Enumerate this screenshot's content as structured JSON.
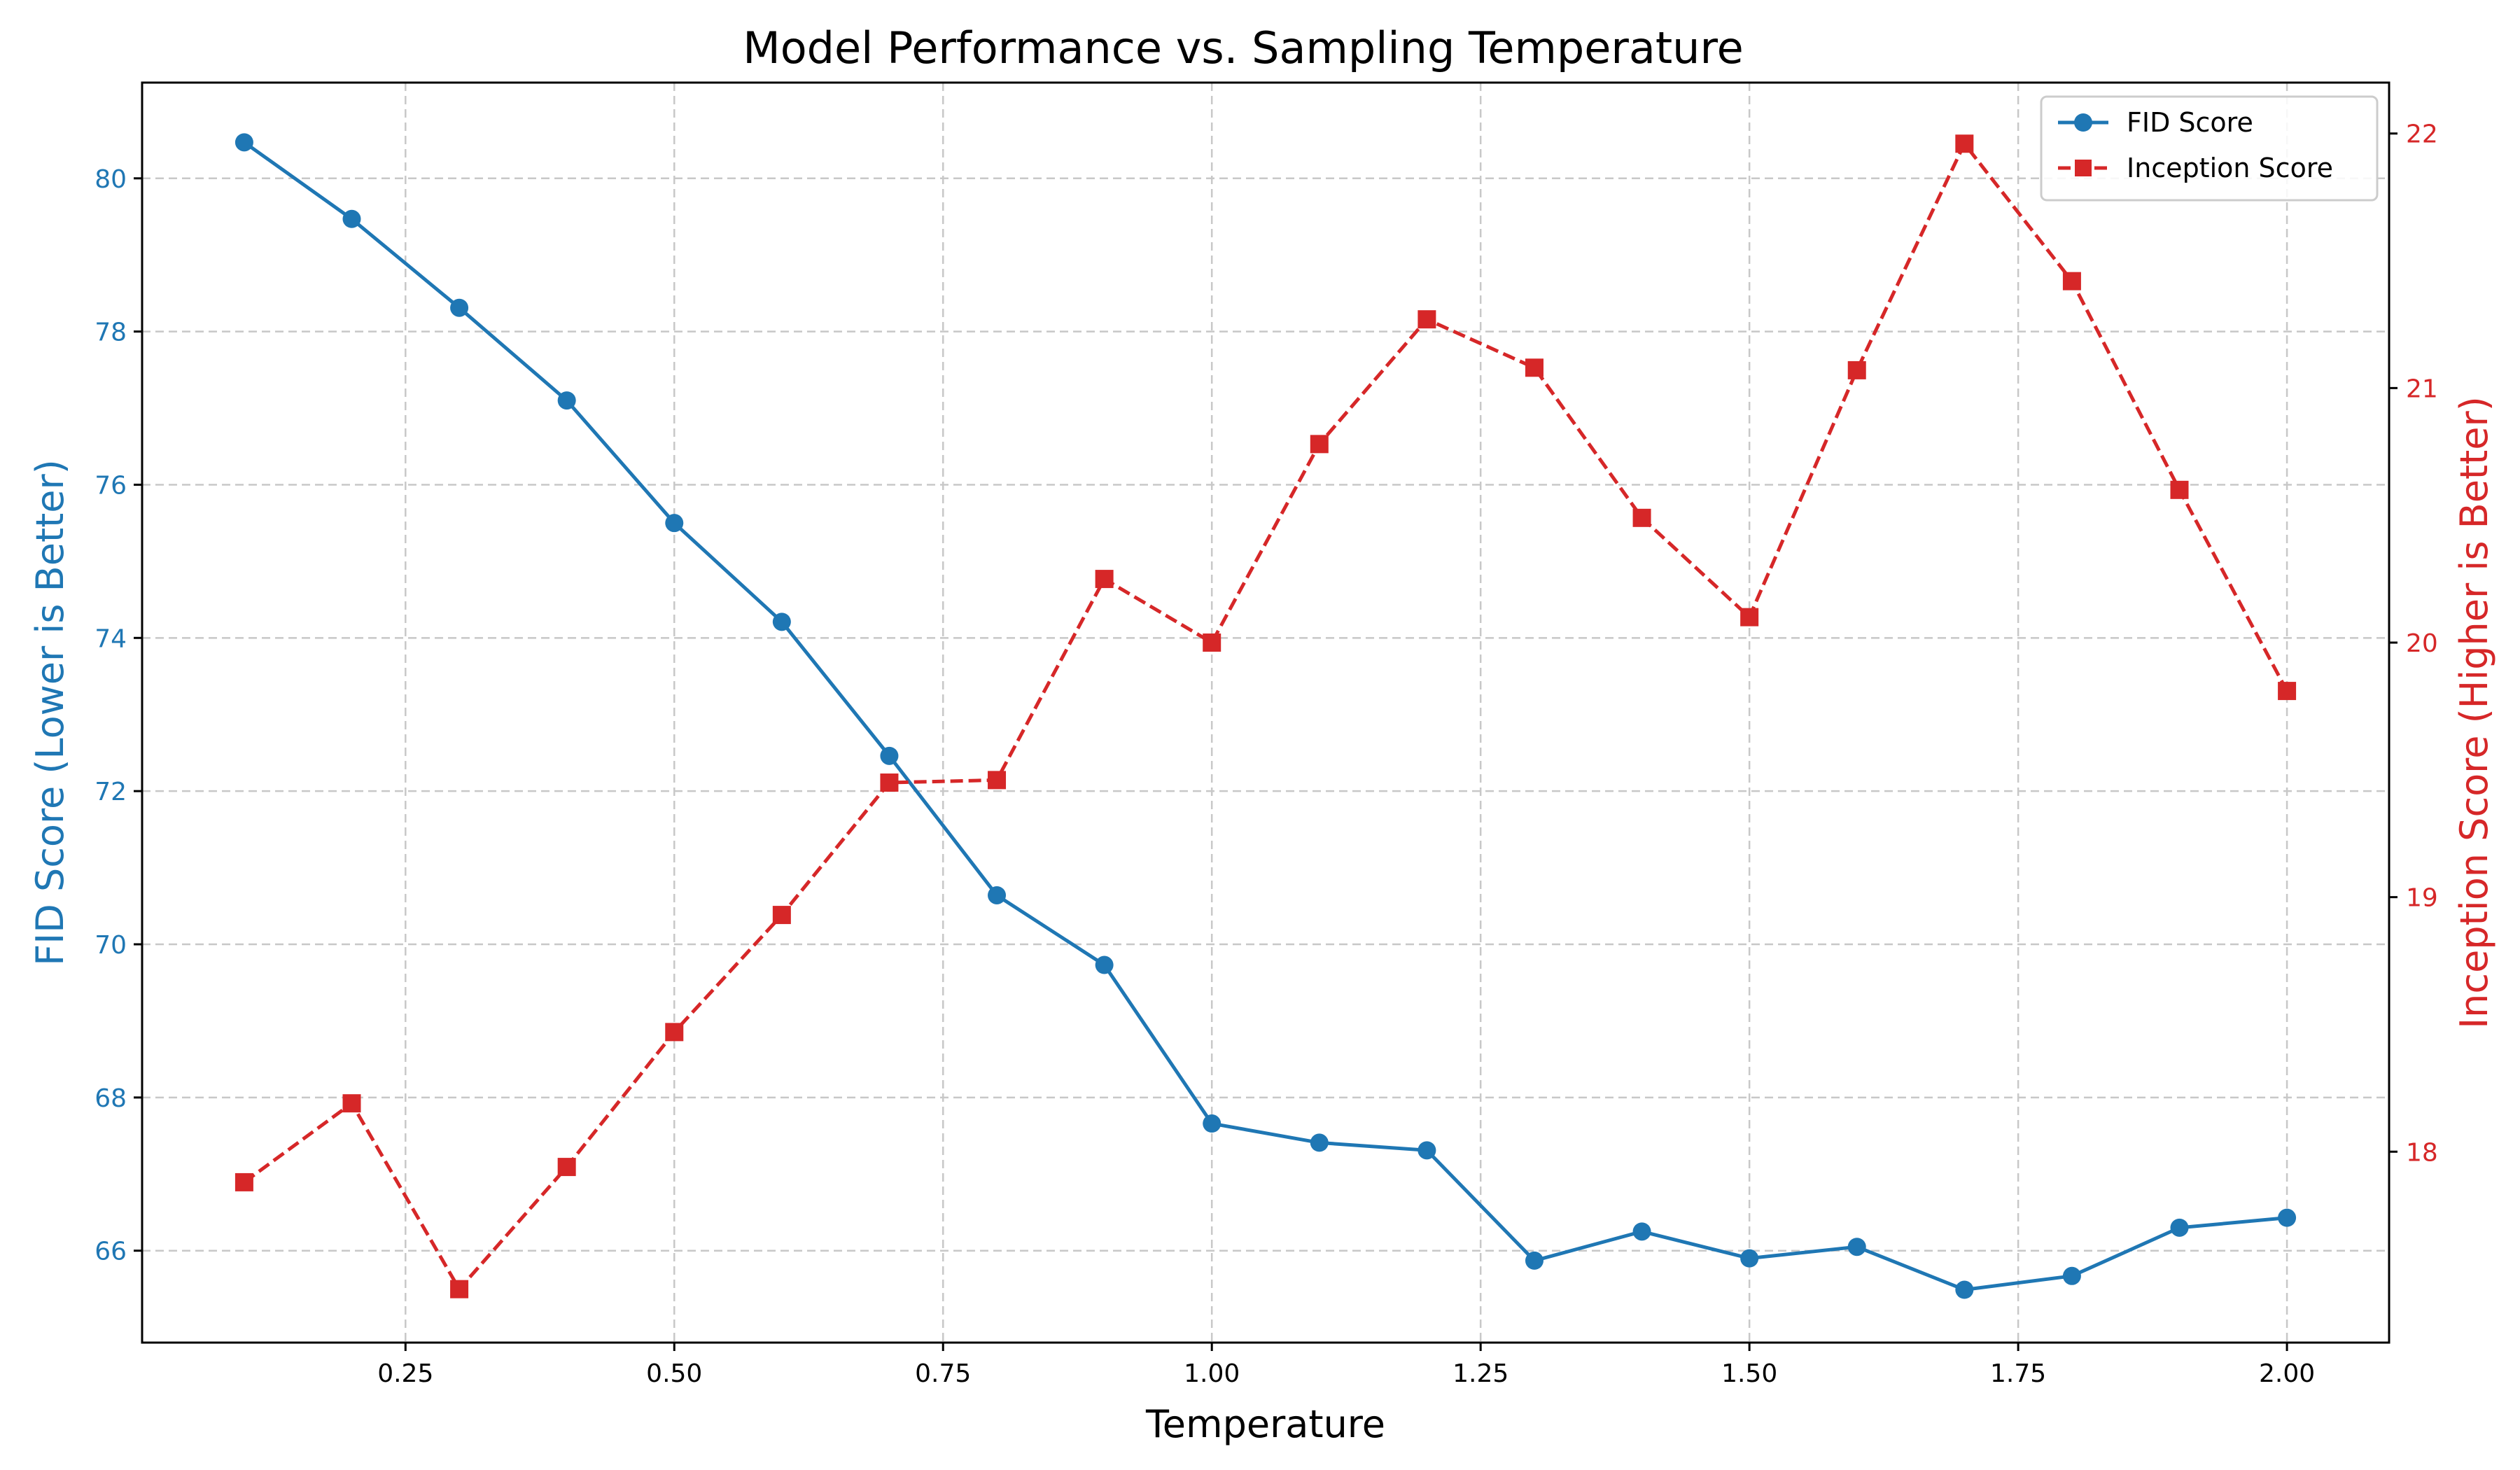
{
  "chart_data": {
    "type": "line",
    "title": "Model Performance vs. Sampling Temperature",
    "xlabel": "Temperature",
    "ylabel_left": "FID Score (Lower is Better)",
    "ylabel_right": "Inception Score (Higher is Better)",
    "x": [
      0.1,
      0.2,
      0.3,
      0.4,
      0.5,
      0.6,
      0.7,
      0.8,
      0.9,
      1.0,
      1.1,
      1.2,
      1.3,
      1.4,
      1.5,
      1.6,
      1.7,
      1.8,
      1.9,
      2.0
    ],
    "xlim": [
      0.005,
      2.095
    ],
    "ylim_left": [
      64.8,
      81.25
    ],
    "ylim_right": [
      17.25,
      22.2
    ],
    "x_ticks": [
      0.25,
      0.5,
      0.75,
      1.0,
      1.25,
      1.5,
      1.75,
      2.0
    ],
    "x_tick_labels": [
      "0.25",
      "0.50",
      "0.75",
      "1.00",
      "1.25",
      "1.50",
      "1.75",
      "2.00"
    ],
    "y_left_ticks": [
      66,
      68,
      70,
      72,
      74,
      76,
      78,
      80
    ],
    "y_left_tick_labels": [
      "66",
      "68",
      "70",
      "72",
      "74",
      "76",
      "78",
      "80"
    ],
    "y_right_ticks": [
      18,
      19,
      20,
      21,
      22
    ],
    "y_right_tick_labels": [
      "18",
      "19",
      "20",
      "21",
      "22"
    ],
    "grid": true,
    "legend_position": "top-right",
    "series": [
      {
        "name": "FID Score",
        "axis": "left",
        "color": "#1f77b4",
        "linestyle": "solid",
        "marker": "circle",
        "values": [
          80.47,
          79.47,
          78.31,
          77.1,
          75.5,
          74.21,
          72.46,
          70.64,
          69.73,
          67.66,
          67.41,
          67.31,
          65.87,
          66.25,
          65.9,
          66.05,
          65.49,
          65.67,
          66.3,
          66.43
        ]
      },
      {
        "name": "Inception Score",
        "axis": "right",
        "color": "#d62728",
        "linestyle": "dashed",
        "marker": "square",
        "values": [
          17.88,
          18.19,
          17.46,
          17.94,
          18.47,
          18.93,
          19.45,
          19.46,
          20.25,
          20.0,
          20.78,
          21.27,
          21.08,
          20.49,
          20.1,
          21.07,
          21.96,
          21.42,
          20.6,
          19.81
        ]
      }
    ]
  }
}
